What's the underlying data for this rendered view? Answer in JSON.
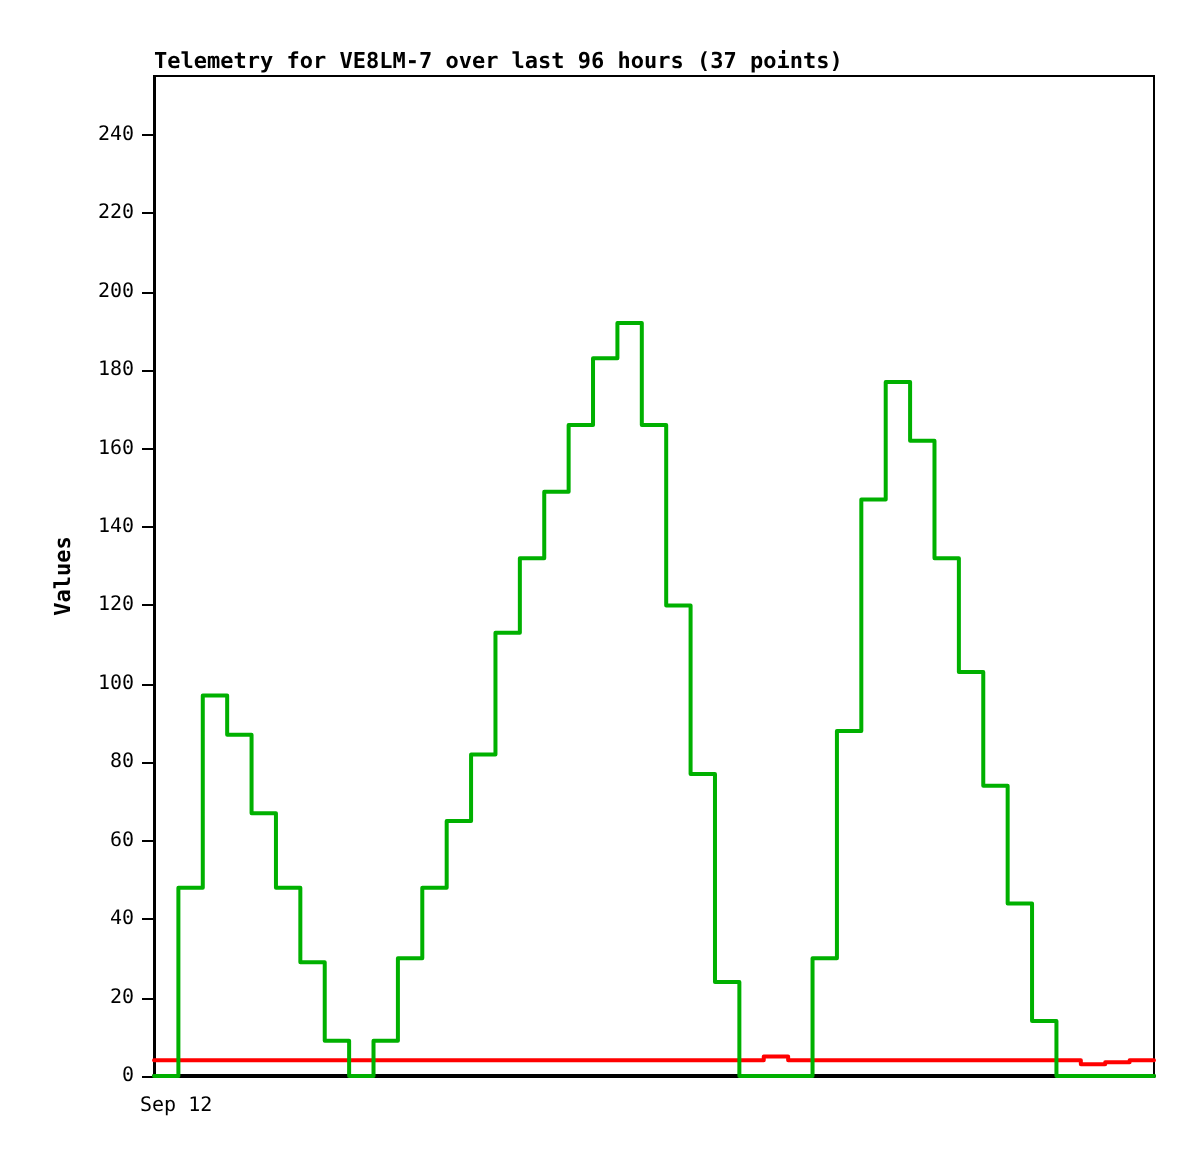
{
  "chart_data": {
    "type": "step",
    "title": "Telemetry for VE8LM-7 over last 96 hours (37 points)",
    "ylabel": "Values",
    "annotations": [
      "Sep 12"
    ],
    "categories": [
      null,
      null,
      null,
      null,
      null,
      null,
      null,
      null,
      null,
      null,
      null,
      null,
      null,
      null,
      null,
      null,
      null,
      null,
      null,
      null,
      null,
      null,
      null,
      null,
      null,
      null,
      null,
      null,
      null,
      null,
      null,
      null,
      null,
      null,
      null,
      null,
      null,
      null,
      null,
      null,
      null,
      null
    ],
    "ylim": [
      0,
      255
    ],
    "yticks": [
      0,
      20,
      40,
      60,
      80,
      100,
      120,
      140,
      160,
      180,
      200,
      220,
      240
    ],
    "grid": false,
    "marker": "none",
    "line_style": "solid",
    "series": [
      {
        "color": "#000000",
        "values": [
          0,
          0,
          0,
          0,
          0,
          0,
          0,
          0,
          0,
          0,
          0,
          0,
          0,
          0,
          0,
          0,
          0,
          0,
          0,
          0,
          0,
          0,
          0,
          0,
          0,
          0,
          0,
          0,
          0,
          0,
          0,
          0,
          0,
          0,
          0,
          0,
          0,
          0,
          0,
          0,
          0,
          0
        ]
      },
      {
        "color": "#ff0000",
        "values": [
          4,
          4,
          4,
          4,
          4,
          4,
          4,
          4,
          4,
          4,
          4,
          4,
          4,
          4,
          4,
          4,
          4,
          4,
          4,
          4,
          4,
          4,
          4,
          4,
          4,
          5,
          4,
          4,
          4,
          4,
          4,
          4,
          4,
          4,
          4,
          4,
          4,
          4,
          3,
          3.5,
          4,
          4
        ]
      },
      {
        "color": "#00b000",
        "values": [
          0,
          48,
          97,
          87,
          67,
          48,
          29,
          9,
          0,
          9,
          30,
          48,
          65,
          82,
          113,
          132,
          149,
          166,
          183,
          192,
          166,
          120,
          77,
          24,
          0,
          0,
          0,
          30,
          88,
          147,
          177,
          162,
          132,
          103,
          74,
          44,
          14,
          0,
          0,
          0,
          0,
          0
        ]
      }
    ]
  }
}
